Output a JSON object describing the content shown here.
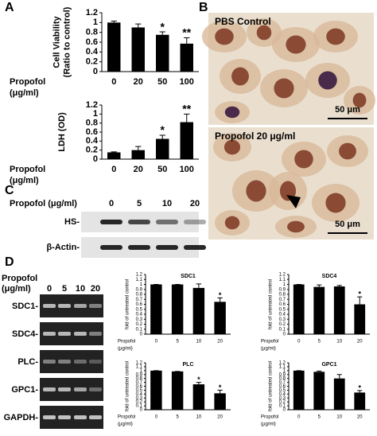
{
  "panel_labels": [
    "A",
    "B",
    "C",
    "D"
  ],
  "chart_data": [
    {
      "type": "bar",
      "ylabel": [
        "Cell Viability",
        "(Ratio to control)"
      ],
      "xlabel": [
        "Propofol",
        "(μg/ml)"
      ],
      "categories": [
        "0",
        "20",
        "50",
        "100"
      ],
      "values": [
        1.0,
        0.9,
        0.75,
        0.57
      ],
      "errors": [
        0.03,
        0.07,
        0.06,
        0.12
      ],
      "annotations": [
        null,
        null,
        "*",
        "**"
      ],
      "color": "#000000",
      "ylim": [
        0,
        1.2
      ],
      "yticks": [
        0,
        0.2,
        0.4,
        0.6,
        0.8,
        1,
        1.2
      ]
    },
    {
      "type": "bar",
      "ylabel": [
        "LDH (OD)"
      ],
      "xlabel": [
        "Propofol",
        "(μg/ml)"
      ],
      "categories": [
        "0",
        "20",
        "50",
        "100"
      ],
      "values": [
        0.15,
        0.2,
        0.45,
        0.82
      ],
      "errors": [
        0.01,
        0.08,
        0.08,
        0.18
      ],
      "annotations": [
        null,
        null,
        "*",
        "**"
      ],
      "color": "#000000",
      "ylim": [
        0,
        1.2
      ],
      "yticks": [
        0,
        0.2,
        0.4,
        0.6,
        0.8,
        1,
        1.2
      ]
    },
    {
      "type": "bar",
      "title": "SDC1",
      "ylabel": [
        "fold of untreated control"
      ],
      "xlabel": [
        "Propofol",
        "(μg/ml)"
      ],
      "categories": [
        "0",
        "5",
        "10",
        "20"
      ],
      "values": [
        1.0,
        1.0,
        0.93,
        0.65
      ],
      "errors": [
        0,
        0,
        0.08,
        0.08
      ],
      "annotations": [
        null,
        null,
        null,
        "*"
      ],
      "color": "#000000",
      "ylim": [
        0,
        1.2
      ],
      "yticks": [
        0,
        0.1,
        0.2,
        0.3,
        0.4,
        0.5,
        0.6,
        0.7,
        0.8,
        0.9,
        1,
        1.1,
        1.2
      ]
    },
    {
      "type": "bar",
      "title": "SDC4",
      "ylabel": [
        "fold of untreated control"
      ],
      "xlabel": [
        "Propofol",
        "(μg/ml)"
      ],
      "categories": [
        "0",
        "5",
        "10",
        "20"
      ],
      "values": [
        1.0,
        0.95,
        0.96,
        0.6
      ],
      "errors": [
        0,
        0.04,
        0.02,
        0.15
      ],
      "annotations": [
        null,
        null,
        null,
        "*"
      ],
      "color": "#000000",
      "ylim": [
        0,
        1.2
      ],
      "yticks": [
        0,
        0.1,
        0.2,
        0.3,
        0.4,
        0.5,
        0.6,
        0.7,
        0.8,
        0.9,
        1,
        1.1,
        1.2
      ]
    },
    {
      "type": "bar",
      "title": "PLC",
      "ylabel": [
        "fold of untreated control"
      ],
      "xlabel": [
        "Propofol",
        "(μg/ml)"
      ],
      "categories": [
        "0",
        "5",
        "10",
        "20"
      ],
      "values": [
        1.0,
        0.98,
        0.65,
        0.42
      ],
      "errors": [
        0,
        0,
        0.05,
        0.08
      ],
      "annotations": [
        null,
        null,
        "*",
        "*"
      ],
      "color": "#000000",
      "ylim": [
        0,
        1.2
      ],
      "yticks": [
        0,
        0.1,
        0.2,
        0.3,
        0.4,
        0.5,
        0.6,
        0.7,
        0.8,
        0.9,
        1,
        1.1,
        1.2
      ]
    },
    {
      "type": "bar",
      "title": "GPC1",
      "ylabel": [
        "fold of untreated control"
      ],
      "xlabel": [
        "Propofol",
        "(μg/ml)"
      ],
      "categories": [
        "0",
        "5",
        "10",
        "20"
      ],
      "values": [
        1.0,
        0.97,
        0.8,
        0.44
      ],
      "errors": [
        0,
        0.02,
        0.1,
        0.05
      ],
      "annotations": [
        null,
        null,
        null,
        "*"
      ],
      "color": "#000000",
      "ylim": [
        0,
        1.2
      ],
      "yticks": [
        0,
        0.1,
        0.2,
        0.3,
        0.4,
        0.5,
        0.6,
        0.7,
        0.8,
        0.9,
        1,
        1.1,
        1.2
      ]
    }
  ],
  "micrographs": [
    {
      "label": "PBS Control",
      "scale_bar": "50 μm"
    },
    {
      "label": "Propofol 20 μg/ml",
      "scale_bar": "50 μm"
    }
  ],
  "western_blot": {
    "treatment_label": "Propofol (μg/ml)",
    "lanes": [
      "0",
      "5",
      "10",
      "20"
    ],
    "rows": [
      "HS-",
      "β-Actin-"
    ]
  },
  "rt_pcr": {
    "treatment_label": [
      "Propofol",
      "(μg/ml)"
    ],
    "lanes": [
      "0",
      "5",
      "10",
      "20"
    ],
    "rows": [
      "SDC1-",
      "SDC4-",
      "PLC-",
      "GPC1-",
      "GAPDH-"
    ]
  }
}
